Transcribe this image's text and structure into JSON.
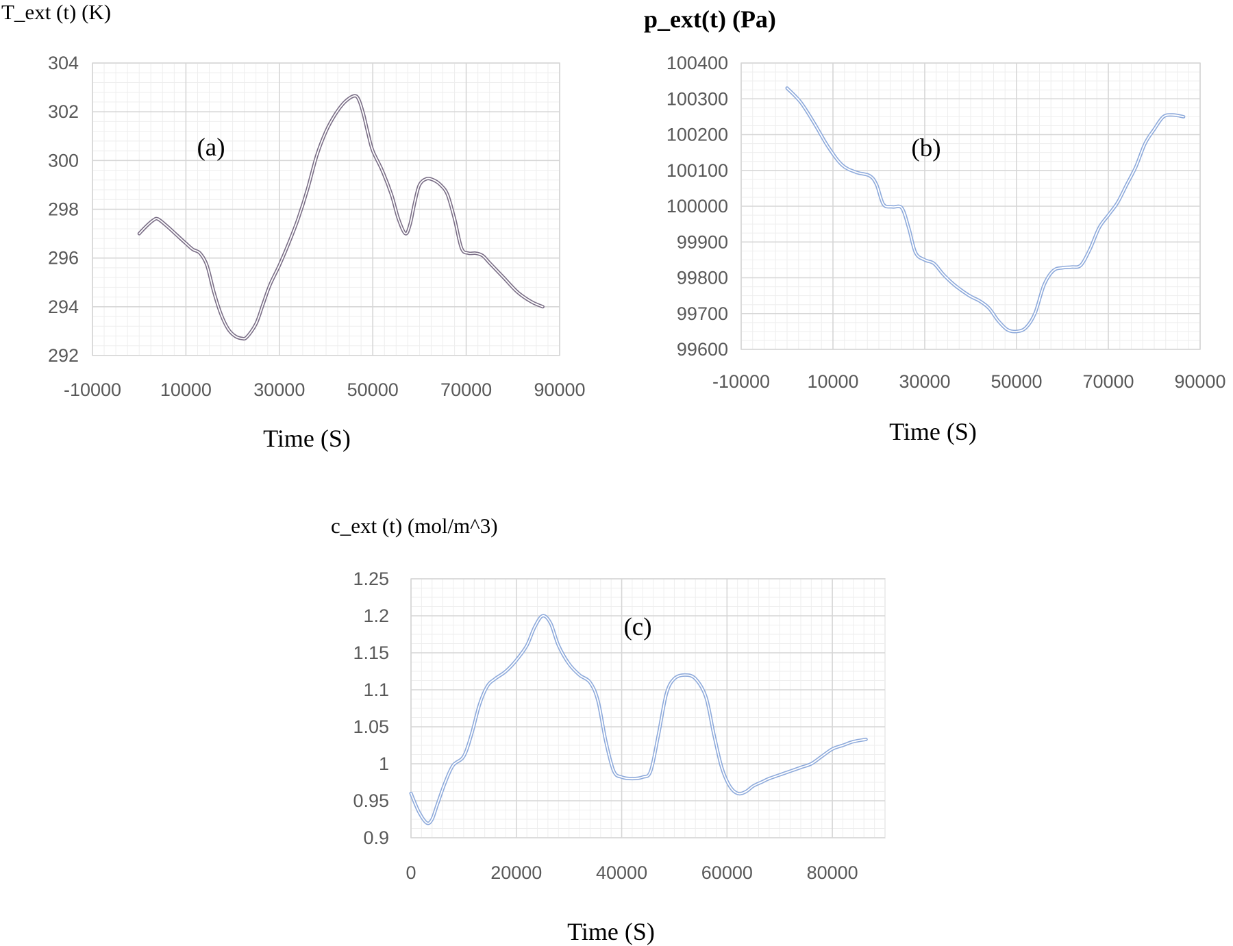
{
  "chart_data": [
    {
      "type": "line",
      "ylabel": "T_ext (t) (K)",
      "xlabel": "Time (S)",
      "annotation": "(a)",
      "xlim": [
        -10000,
        90000
      ],
      "ylim": [
        292,
        304
      ],
      "xticks": [
        -10000,
        10000,
        30000,
        50000,
        70000,
        90000
      ],
      "yticks": [
        292,
        294,
        296,
        298,
        300,
        302,
        304
      ],
      "grid": true,
      "color": "#7a6e86",
      "series": [
        {
          "x": [
            0,
            1500,
            3000,
            4000,
            6000,
            8000,
            10000,
            11500,
            13000,
            14500,
            16000,
            17500,
            19000,
            20500,
            22000,
            23000,
            25000,
            26500,
            28000,
            30000,
            32000,
            34000,
            36000,
            38000,
            40000,
            42000,
            44000,
            46000,
            47000,
            48000,
            49000,
            50000,
            52000,
            54000,
            55500,
            57000,
            58000,
            59000,
            60000,
            61500,
            63000,
            64500,
            66000,
            67500,
            69000,
            70500,
            72000,
            73500,
            75000,
            78000,
            81000,
            84000,
            86400
          ],
          "y": [
            297.0,
            297.3,
            297.55,
            297.6,
            297.3,
            296.95,
            296.6,
            296.35,
            296.2,
            295.7,
            294.6,
            293.7,
            293.1,
            292.8,
            292.7,
            292.75,
            293.3,
            294.1,
            294.9,
            295.7,
            296.6,
            297.6,
            298.8,
            300.2,
            301.2,
            301.9,
            302.4,
            302.65,
            302.5,
            301.9,
            301.1,
            300.4,
            299.6,
            298.6,
            297.6,
            297.0,
            297.4,
            298.3,
            299.0,
            299.25,
            299.2,
            299.0,
            298.6,
            297.6,
            296.4,
            296.2,
            296.2,
            296.1,
            295.8,
            295.2,
            294.6,
            294.2,
            294.0
          ]
        }
      ]
    },
    {
      "type": "line",
      "ylabel": "p_ext(t) (Pa)",
      "xlabel": "Time (S)",
      "annotation": "(b)",
      "xlim": [
        -10000,
        90000
      ],
      "ylim": [
        99600,
        100400
      ],
      "xticks": [
        -10000,
        10000,
        30000,
        50000,
        70000,
        90000
      ],
      "yticks": [
        99600,
        99700,
        99800,
        99900,
        100000,
        100100,
        100200,
        100300,
        100400
      ],
      "grid": true,
      "color": "#8eaadb",
      "series": [
        {
          "x": [
            0,
            3000,
            6000,
            9000,
            12000,
            15000,
            18000,
            19500,
            21000,
            23000,
            25000,
            26500,
            28000,
            30000,
            32000,
            34000,
            36000,
            38000,
            40000,
            42000,
            44000,
            46000,
            48000,
            50000,
            52000,
            54000,
            56000,
            58000,
            60000,
            62000,
            64000,
            66000,
            68000,
            70000,
            72000,
            74000,
            76000,
            78000,
            80000,
            82000,
            84000,
            86400
          ],
          "y": [
            100330,
            100290,
            100230,
            100165,
            100115,
            100095,
            100085,
            100060,
            100005,
            99998,
            99995,
            99940,
            99870,
            99850,
            99840,
            99810,
            99785,
            99765,
            99748,
            99735,
            99715,
            99680,
            99655,
            99650,
            99660,
            99700,
            99780,
            99820,
            99828,
            99830,
            99835,
            99880,
            99940,
            99975,
            100010,
            100060,
            100110,
            100175,
            100215,
            100250,
            100255,
            100250
          ]
        }
      ]
    },
    {
      "type": "line",
      "ylabel": "c_ext (t)  (mol/m^3)",
      "xlabel": "Time (S)",
      "annotation": "(c)",
      "xlim": [
        0,
        90000
      ],
      "ylim": [
        0.9,
        1.25
      ],
      "xticks": [
        0,
        20000,
        40000,
        60000,
        80000
      ],
      "yticks": [
        0.9,
        0.95,
        1,
        1.05,
        1.1,
        1.15,
        1.2,
        1.25
      ],
      "ytick_labels": [
        "0.9",
        "0.95",
        "1",
        "1.05",
        "1.1",
        "1.15",
        "1.2",
        "1.25"
      ],
      "grid": true,
      "color": "#8eaadb",
      "series": [
        {
          "x": [
            0,
            1500,
            3000,
            4000,
            5000,
            6500,
            8000,
            10000,
            11500,
            13000,
            14500,
            16000,
            18000,
            20000,
            22000,
            23500,
            25000,
            26500,
            28000,
            30000,
            32000,
            34000,
            35500,
            37000,
            38500,
            40000,
            42000,
            44000,
            45500,
            47000,
            48500,
            50000,
            52000,
            54000,
            56000,
            57500,
            59000,
            60500,
            62000,
            63500,
            65000,
            66500,
            68000,
            70000,
            72000,
            74000,
            76000,
            78000,
            80000,
            82000,
            84000,
            86400
          ],
          "y": [
            0.96,
            0.935,
            0.92,
            0.925,
            0.945,
            0.975,
            0.998,
            1.01,
            1.04,
            1.08,
            1.105,
            1.115,
            1.125,
            1.14,
            1.16,
            1.185,
            1.2,
            1.19,
            1.16,
            1.135,
            1.12,
            1.11,
            1.085,
            1.03,
            0.99,
            0.982,
            0.98,
            0.982,
            0.99,
            1.04,
            1.095,
            1.115,
            1.12,
            1.115,
            1.09,
            1.04,
            0.995,
            0.97,
            0.96,
            0.962,
            0.97,
            0.975,
            0.98,
            0.985,
            0.99,
            0.995,
            1.0,
            1.01,
            1.02,
            1.025,
            1.03,
            1.033
          ]
        }
      ]
    }
  ]
}
